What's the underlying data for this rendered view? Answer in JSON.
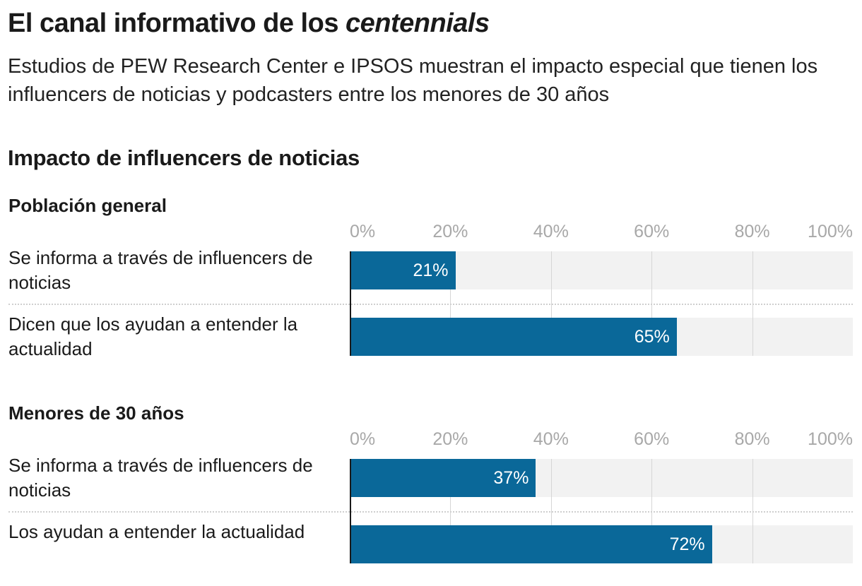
{
  "header": {
    "title_main": "El canal informativo de los ",
    "title_italic": "centennials",
    "subtitle": "Estudios de PEW Research Center e IPSOS muestran el impacto especial que tienen los influencers de noticias y podcasters entre los menores de 30 años"
  },
  "section_title": "Impacto de influencers de noticias",
  "chart_data": [
    {
      "type": "bar",
      "orientation": "horizontal",
      "title": "Población general",
      "categories": [
        "Se informa a través de influencers de noticias",
        "Dicen que los ayudan a entender la actualidad"
      ],
      "values": [
        21,
        65
      ],
      "value_labels": [
        "21%",
        "65%"
      ],
      "xlim": [
        0,
        100
      ],
      "ticks": [
        "0%",
        "20%",
        "40%",
        "60%",
        "80%",
        "100%"
      ],
      "grid": true,
      "color": "#0a6899"
    },
    {
      "type": "bar",
      "orientation": "horizontal",
      "title": "Menores de 30 años",
      "categories": [
        "Se informa a través de influencers de noticias",
        "Los ayudan a entender la actualidad"
      ],
      "values": [
        37,
        72
      ],
      "value_labels": [
        "37%",
        "72%"
      ],
      "xlim": [
        0,
        100
      ],
      "ticks": [
        "0%",
        "20%",
        "40%",
        "60%",
        "80%",
        "100%"
      ],
      "grid": true,
      "color": "#0a6899"
    }
  ]
}
